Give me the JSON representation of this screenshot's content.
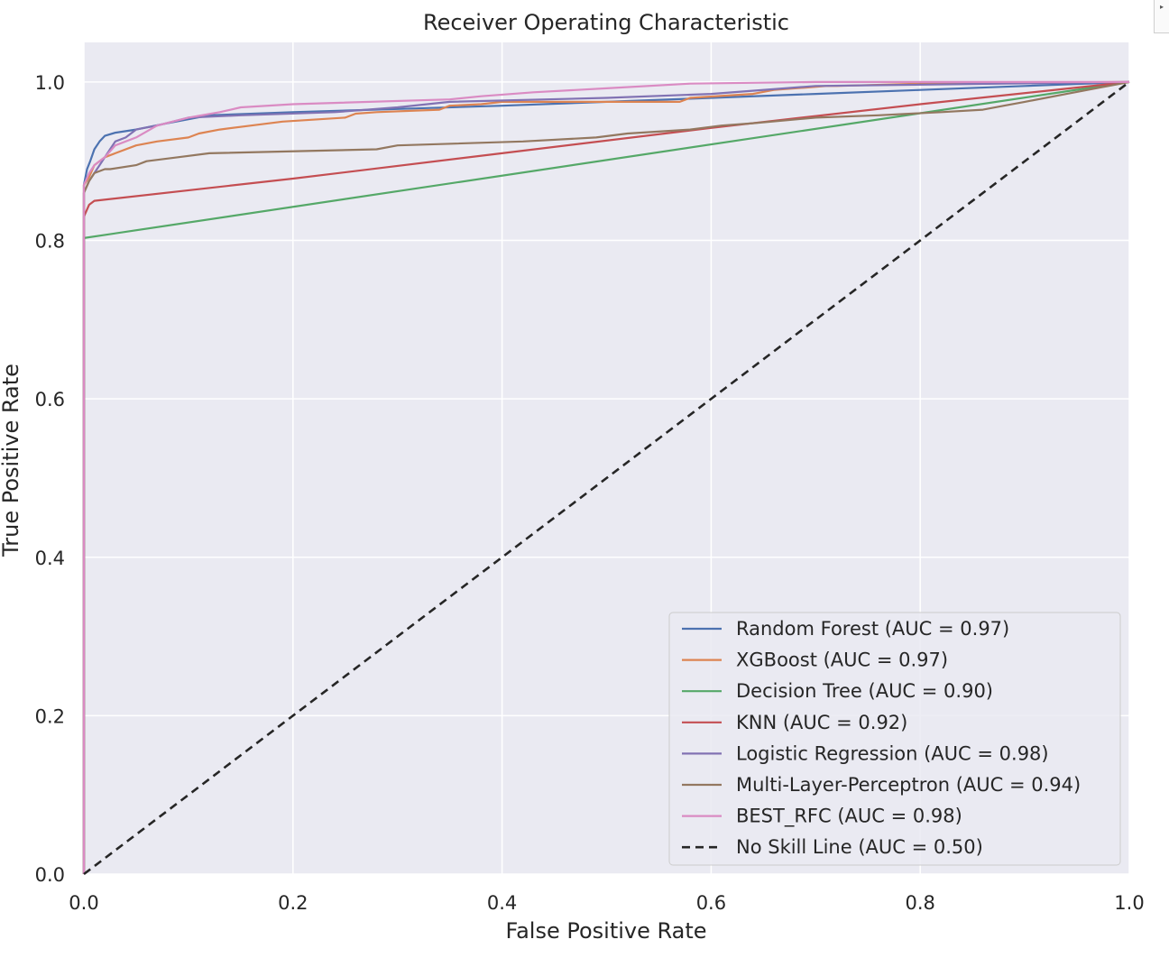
{
  "corner_toggle": {
    "icon": "caret-right-icon",
    "glyph": "▸"
  },
  "chart_data": {
    "type": "line",
    "title": "Receiver Operating Characteristic",
    "xlabel": "False Positive Rate",
    "ylabel": "True Positive Rate",
    "xlim": [
      0.0,
      1.0
    ],
    "ylim": [
      0.0,
      1.05
    ],
    "xticks": [
      0.0,
      0.2,
      0.4,
      0.6,
      0.8,
      1.0
    ],
    "xtick_labels": [
      "0.0",
      "0.2",
      "0.4",
      "0.6",
      "0.8",
      "1.0"
    ],
    "yticks": [
      0.0,
      0.2,
      0.4,
      0.6,
      0.8,
      1.0
    ],
    "ytick_labels": [
      "0.0",
      "0.2",
      "0.4",
      "0.6",
      "0.8",
      "1.0"
    ],
    "grid": true,
    "background": "#eaeaf2",
    "legend_position": "lower-right",
    "series": [
      {
        "name": "Random Forest (AUC = 0.97)",
        "color": "#4c72b0",
        "dash": false,
        "x": [
          0,
          0,
          0.003,
          0.006,
          0.01,
          0.015,
          0.02,
          0.03,
          0.05,
          0.08,
          0.12,
          0.2,
          0.3,
          0.4,
          0.5,
          0.6,
          0.7,
          0.8,
          0.9,
          1.0
        ],
        "y": [
          0,
          0.87,
          0.89,
          0.9,
          0.915,
          0.925,
          0.932,
          0.936,
          0.94,
          0.948,
          0.958,
          0.962,
          0.966,
          0.97,
          0.975,
          0.98,
          0.985,
          0.99,
          0.995,
          1.0
        ]
      },
      {
        "name": "XGBoost (AUC = 0.97)",
        "color": "#dd8452",
        "dash": false,
        "x": [
          0,
          0,
          0.005,
          0.01,
          0.02,
          0.03,
          0.05,
          0.07,
          0.1,
          0.11,
          0.13,
          0.16,
          0.19,
          0.25,
          0.26,
          0.28,
          0.34,
          0.35,
          0.38,
          0.4,
          0.57,
          0.58,
          0.64,
          0.66,
          0.69,
          0.71,
          0.72,
          0.8,
          1.0
        ],
        "y": [
          0,
          0.87,
          0.88,
          0.895,
          0.905,
          0.91,
          0.92,
          0.925,
          0.93,
          0.935,
          0.94,
          0.945,
          0.95,
          0.955,
          0.96,
          0.962,
          0.965,
          0.97,
          0.972,
          0.975,
          0.975,
          0.98,
          0.985,
          0.99,
          0.993,
          0.995,
          0.995,
          0.998,
          1.0
        ]
      },
      {
        "name": "Decision Tree (AUC = 0.90)",
        "color": "#55a868",
        "dash": false,
        "x": [
          0,
          0,
          1.0
        ],
        "y": [
          0,
          0.803,
          1.0
        ]
      },
      {
        "name": "KNN (AUC = 0.92)",
        "color": "#c44e52",
        "dash": false,
        "x": [
          0,
          0,
          0.005,
          0.01,
          0.2,
          0.4,
          0.6,
          0.8,
          1.0
        ],
        "y": [
          0,
          0.83,
          0.845,
          0.85,
          0.878,
          0.91,
          0.942,
          0.972,
          1.0
        ]
      },
      {
        "name": "Logistic Regression (AUC = 0.98)",
        "color": "#8172b3",
        "dash": false,
        "x": [
          0,
          0,
          0.005,
          0.01,
          0.015,
          0.02,
          0.025,
          0.03,
          0.04,
          0.05,
          0.07,
          0.1,
          0.15,
          0.24,
          0.3,
          0.35,
          0.5,
          0.6,
          0.7,
          1.0
        ],
        "y": [
          0,
          0.86,
          0.875,
          0.885,
          0.895,
          0.905,
          0.915,
          0.925,
          0.93,
          0.94,
          0.945,
          0.955,
          0.958,
          0.962,
          0.968,
          0.975,
          0.98,
          0.985,
          0.995,
          1.0
        ]
      },
      {
        "name": "Multi-Layer-Perceptron (AUC = 0.94)",
        "color": "#937860",
        "dash": false,
        "x": [
          0,
          0,
          0.005,
          0.01,
          0.02,
          0.025,
          0.05,
          0.06,
          0.09,
          0.12,
          0.28,
          0.3,
          0.42,
          0.49,
          0.52,
          0.58,
          0.61,
          0.64,
          0.7,
          0.76,
          0.82,
          0.86,
          0.88,
          0.9,
          0.92,
          0.94,
          0.96,
          0.98,
          1.0
        ],
        "y": [
          0,
          0.86,
          0.875,
          0.885,
          0.89,
          0.89,
          0.895,
          0.9,
          0.905,
          0.91,
          0.915,
          0.92,
          0.925,
          0.93,
          0.935,
          0.94,
          0.945,
          0.948,
          0.955,
          0.958,
          0.962,
          0.965,
          0.97,
          0.975,
          0.98,
          0.985,
          0.99,
          0.995,
          1.0
        ]
      },
      {
        "name": "BEST_RFC (AUC = 0.98)",
        "color": "#da8bc3",
        "dash": false,
        "x": [
          0,
          0,
          0.005,
          0.01,
          0.02,
          0.03,
          0.05,
          0.07,
          0.1,
          0.13,
          0.15,
          0.2,
          0.35,
          0.38,
          0.43,
          0.5,
          0.58,
          0.7,
          0.8,
          1.0
        ],
        "y": [
          0,
          0.87,
          0.885,
          0.895,
          0.905,
          0.92,
          0.93,
          0.945,
          0.955,
          0.962,
          0.968,
          0.972,
          0.978,
          0.982,
          0.987,
          0.992,
          0.998,
          1.0,
          1.0,
          1.0
        ]
      },
      {
        "name": "No Skill Line (AUC = 0.50)",
        "color": "#262626",
        "dash": true,
        "x": [
          0,
          1
        ],
        "y": [
          0,
          1
        ]
      }
    ]
  }
}
